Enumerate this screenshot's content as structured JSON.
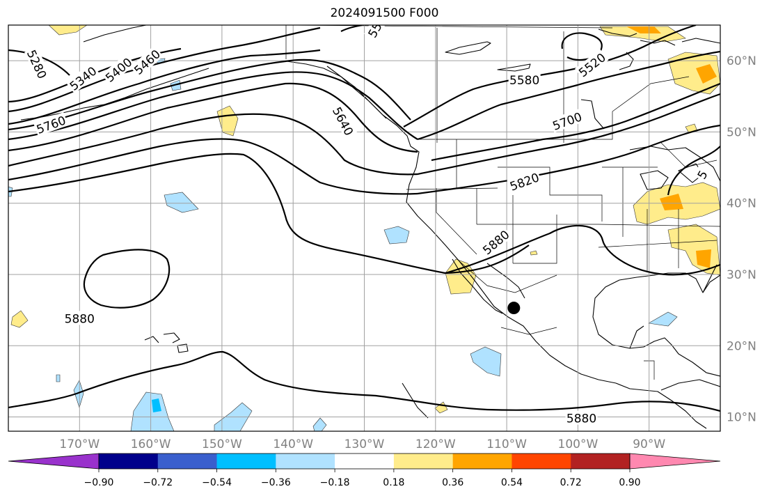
{
  "title": "2024091500 F000",
  "map": {
    "projection": "plate-carree",
    "extent": {
      "lon_min": -180,
      "lon_max": -80,
      "lat_min": 8,
      "lat_max": 65
    },
    "grid": true,
    "lon_ticks": [
      {
        "value": -170,
        "label": "170°W"
      },
      {
        "value": -160,
        "label": "160°W"
      },
      {
        "value": -150,
        "label": "150°W"
      },
      {
        "value": -140,
        "label": "140°W"
      },
      {
        "value": -130,
        "label": "130°W"
      },
      {
        "value": -120,
        "label": "120°W"
      },
      {
        "value": -110,
        "label": "110°W"
      },
      {
        "value": -100,
        "label": "100°W"
      },
      {
        "value": -90,
        "label": "90°W"
      }
    ],
    "lat_ticks": [
      {
        "value": 60,
        "label": "60°N"
      },
      {
        "value": 50,
        "label": "50°N"
      },
      {
        "value": 40,
        "label": "40°N"
      },
      {
        "value": 30,
        "label": "30°N"
      },
      {
        "value": 20,
        "label": "20°N"
      },
      {
        "value": 10,
        "label": "10°N"
      }
    ],
    "contour_labels": [
      {
        "text": "5280",
        "lon": -176,
        "lat": 59.5,
        "angle": 65
      },
      {
        "text": "5340",
        "lon": -169.5,
        "lat": 57.5,
        "angle": -38
      },
      {
        "text": "5400",
        "lon": -164.5,
        "lat": 58.7,
        "angle": -40
      },
      {
        "text": "5460",
        "lon": -160.5,
        "lat": 59.8,
        "angle": -42
      },
      {
        "text": "5760",
        "lon": -174,
        "lat": 51,
        "angle": -20
      },
      {
        "text": "5640",
        "lon": -133,
        "lat": 51.5,
        "angle": 62
      },
      {
        "text": "5580",
        "lon": -107.5,
        "lat": 57.3,
        "angle": 0
      },
      {
        "text": "5520",
        "lon": -98,
        "lat": 59.4,
        "angle": -38
      },
      {
        "text": "5700",
        "lon": -101.5,
        "lat": 51.5,
        "angle": -20
      },
      {
        "text": "5820",
        "lon": -107.5,
        "lat": 43,
        "angle": -20
      },
      {
        "text": "5880",
        "lon": -111.5,
        "lat": 34.5,
        "angle": -40
      },
      {
        "text": "5880",
        "lon": -170,
        "lat": 23.8,
        "angle": 0
      },
      {
        "text": "5880",
        "lon": -99.5,
        "lat": 9.8,
        "angle": 0
      },
      {
        "text": "55",
        "lon": -128.5,
        "lat": 64.3,
        "angle": -60
      },
      {
        "text": "5",
        "lon": -82.5,
        "lat": 44,
        "angle": -60
      }
    ],
    "storm_marker": {
      "lon": -109,
      "lat": 25.3
    }
  },
  "colorbar": {
    "colors": [
      "#9932cc",
      "#00008b",
      "#3a5fcd",
      "#00bfff",
      "#b0e2ff",
      "#ffffff",
      "#ffec8b",
      "#ffa500",
      "#ff4500",
      "#b22222",
      "#ff88b0"
    ],
    "ticks": [
      "−0.90",
      "−0.72",
      "−0.54",
      "−0.36",
      "−0.18",
      "0.18",
      "0.36",
      "0.54",
      "0.72",
      "0.90"
    ]
  }
}
